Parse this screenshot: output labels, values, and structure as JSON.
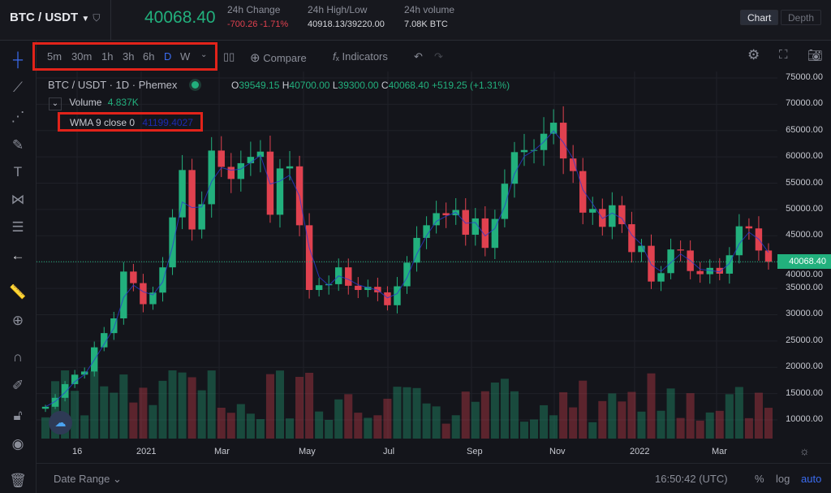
{
  "header": {
    "symbol": "BTC / USDT",
    "last_price": "40068.40",
    "stats": [
      {
        "label": "24h Change",
        "value": "-700.26 -1.71%",
        "color": "#e0414f"
      },
      {
        "label": "24h High/Low",
        "value": "40918.13/39220.00",
        "color": "#d6d7dc"
      },
      {
        "label": "24h volume",
        "value": "7.08K BTC",
        "color": "#d6d7dc"
      }
    ],
    "views": [
      "Chart",
      "Depth"
    ]
  },
  "toolbar": {
    "timeframes": [
      "5m",
      "30m",
      "1h",
      "3h",
      "6h",
      "D",
      "W"
    ],
    "active_timeframe": "D",
    "compare": "Compare",
    "indicators": "Indicators"
  },
  "legend": {
    "title": "BTC / USDT · 1D · Phemex",
    "ohlc": [
      {
        "k": "O",
        "v": "39549.15"
      },
      {
        "k": "H",
        "v": "40700.00"
      },
      {
        "k": "L",
        "v": "39300.00"
      },
      {
        "k": "C",
        "v": "40068.40"
      }
    ],
    "change": "+519.25 (+1.31%)",
    "volume_label": "Volume",
    "volume_value": "4.837K",
    "wma_label": "WMA 9 close 0",
    "wma_value": "41199.4027"
  },
  "bottom": {
    "date_range": "Date Range",
    "clock": "16:50:42 (UTC)",
    "percent": "%",
    "log": "log",
    "auto": "auto"
  },
  "colors": {
    "up": "#22b07d",
    "down": "#e0414f",
    "accent": "#3b6cf0",
    "current": "#22b07d"
  },
  "chart_data": {
    "type": "candlestick",
    "ylim": [
      10000,
      75000
    ],
    "y_ticks": [
      "75000.00",
      "70000.00",
      "65000.00",
      "60000.00",
      "55000.00",
      "50000.00",
      "45000.00",
      "40000.00",
      "35000.00",
      "30000.00",
      "25000.00",
      "20000.00",
      "15000.00",
      "10000.00"
    ],
    "x_ticks": [
      "16",
      "2021",
      "Mar",
      "May",
      "Jul",
      "Sep",
      "Nov",
      "2022",
      "Mar"
    ],
    "current_price_label": "40068.40",
    "current_price": 40068.4,
    "weekly_closes": [
      12500,
      14200,
      16800,
      18600,
      19200,
      23800,
      26500,
      29300,
      38200,
      36000,
      32000,
      34200,
      39000,
      48500,
      57500,
      46200,
      51000,
      61200,
      58100,
      55800,
      58800,
      60000,
      61000,
      49000,
      57800,
      58200,
      47000,
      34700,
      35600,
      35800,
      39000,
      35500,
      34700,
      35300,
      34250,
      31800,
      35400,
      39900,
      44600,
      47000,
      49300,
      48900,
      49900,
      45200,
      48300,
      42700,
      48200,
      54900,
      60900,
      61300,
      61300,
      64400,
      66500,
      59700,
      57300,
      49400,
      50100,
      46700,
      50800,
      47200,
      41900,
      43100,
      36300,
      37900,
      42400,
      42200,
      38300,
      37700,
      38900,
      37800,
      41300,
      46800,
      46400,
      42200,
      40068
    ]
  }
}
